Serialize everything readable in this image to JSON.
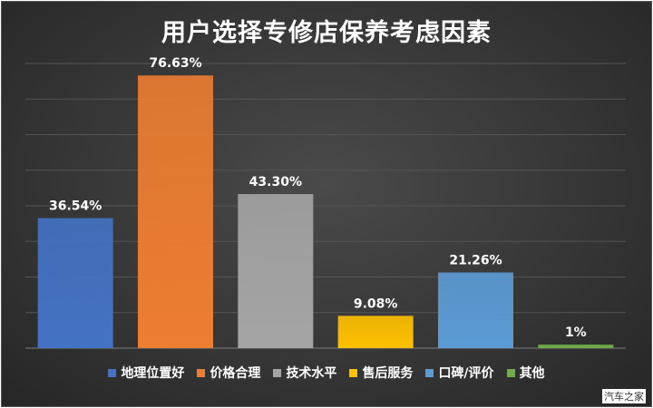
{
  "chart_data": {
    "type": "bar",
    "title": "用户选择专修店保养考虑因素",
    "categories": [
      "地理位置好",
      "价格合理",
      "技术水平",
      "售后服务",
      "口碑/评价",
      "其他"
    ],
    "values": [
      36.54,
      76.63,
      43.3,
      9.08,
      21.26,
      1
    ],
    "data_labels": [
      "36.54%",
      "76.63%",
      "43.30%",
      "9.08%",
      "21.26%",
      "1%"
    ],
    "colors": [
      "#4472c4",
      "#ed7d31",
      "#a5a5a5",
      "#ffc000",
      "#5b9bd5",
      "#70ad47"
    ],
    "ylim": [
      0,
      80
    ],
    "grid": true,
    "legend_position": "bottom",
    "xlabel": "",
    "ylabel": ""
  },
  "watermark": "汽车之家"
}
